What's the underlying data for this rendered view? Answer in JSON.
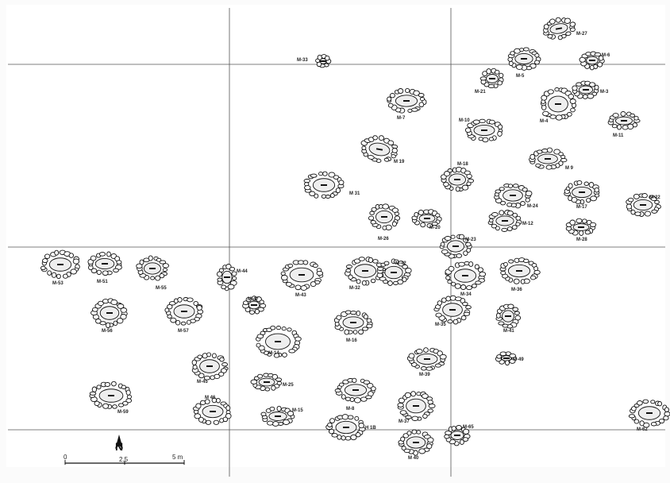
{
  "structures": [
    {
      "id": "m27",
      "label": "M-27",
      "icon": "stone-circle-icon"
    },
    {
      "id": "m6",
      "label": "M-6",
      "icon": "stone-circle-icon"
    },
    {
      "id": "m5",
      "label": "M-5",
      "icon": "stone-circle-icon"
    },
    {
      "id": "m33",
      "label": "M-33",
      "icon": "stone-circle-icon"
    },
    {
      "id": "m21",
      "label": "M-21",
      "icon": "stone-circle-icon"
    },
    {
      "id": "m3",
      "label": "M-3",
      "icon": "stone-circle-icon"
    },
    {
      "id": "m7",
      "label": "M-7",
      "icon": "stone-circle-icon"
    },
    {
      "id": "m4",
      "label": "M-4",
      "icon": "stone-circle-icon"
    },
    {
      "id": "m10",
      "label": "M-10",
      "icon": "stone-circle-icon"
    },
    {
      "id": "m11",
      "label": "M-11",
      "icon": "stone-circle-icon"
    },
    {
      "id": "m19",
      "label": "M 19",
      "icon": "stone-circle-icon"
    },
    {
      "id": "m9",
      "label": "M 9",
      "icon": "stone-circle-icon"
    },
    {
      "id": "m18",
      "label": "M-18",
      "icon": "stone-circle-icon"
    },
    {
      "id": "m31",
      "label": "M 31",
      "icon": "stone-circle-icon"
    },
    {
      "id": "m24",
      "label": "M-24",
      "icon": "stone-circle-icon"
    },
    {
      "id": "m17",
      "label": "M-17",
      "icon": "stone-circle-icon"
    },
    {
      "id": "m22",
      "label": "M-22",
      "icon": "stone-circle-icon"
    },
    {
      "id": "m12",
      "label": "M-12",
      "icon": "stone-circle-icon"
    },
    {
      "id": "m26",
      "label": "M-26",
      "icon": "stone-circle-icon"
    },
    {
      "id": "m20",
      "label": "M-20",
      "icon": "stone-circle-icon"
    },
    {
      "id": "m28",
      "label": "M-28",
      "icon": "stone-circle-icon"
    },
    {
      "id": "m23",
      "label": "M-23",
      "icon": "stone-circle-icon"
    },
    {
      "id": "m53",
      "label": "M-53",
      "icon": "stone-circle-icon"
    },
    {
      "id": "m51",
      "label": "M-51",
      "icon": "stone-circle-icon"
    },
    {
      "id": "m55",
      "label": "M-55",
      "icon": "stone-circle-icon"
    },
    {
      "id": "m44",
      "label": "M-44",
      "icon": "stone-circle-icon"
    },
    {
      "id": "m43",
      "label": "M-43",
      "icon": "stone-circle-icon"
    },
    {
      "id": "m32",
      "label": "M-32",
      "icon": "stone-circle-icon"
    },
    {
      "id": "m42",
      "label": "M-42",
      "icon": "stone-circle-icon"
    },
    {
      "id": "m34",
      "label": "M-34",
      "icon": "stone-circle-icon"
    },
    {
      "id": "m36",
      "label": "M-36",
      "icon": "stone-circle-icon"
    },
    {
      "id": "m47",
      "label": "M-47",
      "icon": "stone-circle-icon"
    },
    {
      "id": "m56",
      "label": "M-56",
      "icon": "stone-circle-icon"
    },
    {
      "id": "m57",
      "label": "M-57",
      "icon": "stone-circle-icon"
    },
    {
      "id": "m35",
      "label": "M-35",
      "icon": "stone-circle-icon"
    },
    {
      "id": "m41",
      "label": "M-41",
      "icon": "stone-circle-icon"
    },
    {
      "id": "m16",
      "label": "M-16",
      "icon": "stone-circle-icon"
    },
    {
      "id": "m14",
      "label": "M-14",
      "icon": "stone-circle-icon"
    },
    {
      "id": "m49",
      "label": "M-49",
      "icon": "stone-circle-icon"
    },
    {
      "id": "m39",
      "label": "M-39",
      "icon": "stone-circle-icon"
    },
    {
      "id": "m45",
      "label": "M-45",
      "icon": "stone-circle-icon"
    },
    {
      "id": "m25",
      "label": "M-25",
      "icon": "stone-circle-icon"
    },
    {
      "id": "m8",
      "label": "M-8",
      "icon": "stone-circle-icon"
    },
    {
      "id": "m59",
      "label": "M-59",
      "icon": "stone-circle-icon"
    },
    {
      "id": "m46",
      "label": "M 46",
      "icon": "stone-circle-icon"
    },
    {
      "id": "m15",
      "label": "M-15",
      "icon": "stone-circle-icon"
    },
    {
      "id": "m37",
      "label": "M-37",
      "icon": "stone-circle-icon"
    },
    {
      "id": "m1b",
      "label": "H 1B",
      "icon": "stone-circle-icon"
    },
    {
      "id": "m65",
      "label": "M-65",
      "icon": "stone-circle-icon"
    },
    {
      "id": "m40",
      "label": "M 40",
      "icon": "stone-circle-icon"
    },
    {
      "id": "m62",
      "label": "M-62",
      "icon": "stone-circle-icon"
    }
  ],
  "scale_bar": {
    "labels": [
      "0",
      "2.5",
      "5 m"
    ]
  },
  "north_arrow": {
    "letter": "N",
    "icon": "north-arrow-icon"
  },
  "colors": {
    "ink": "#111111",
    "grid": "#555555",
    "slab_fill": "#eeeeee",
    "background": "#ffffff"
  }
}
